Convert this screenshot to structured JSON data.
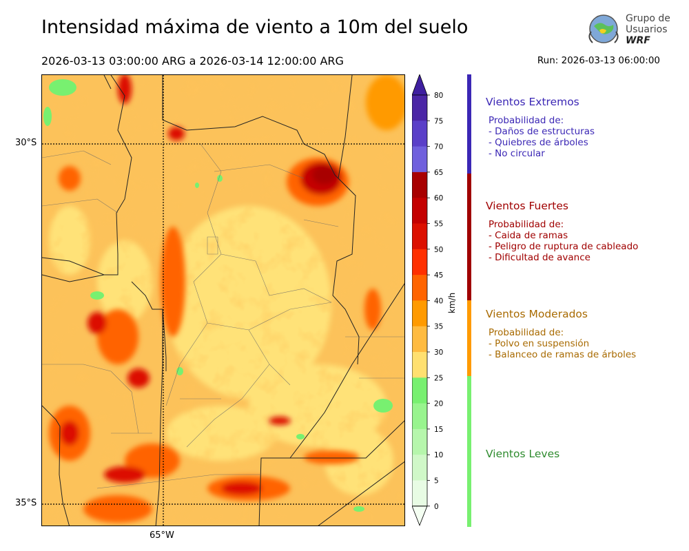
{
  "header": {
    "title": "Intensidad máxima de viento a 10m del suelo",
    "period": "2026-03-13 03:00:00 ARG  a  2026-03-14 12:00:00 ARG",
    "run": "Run: 2026-03-13 06:00:00"
  },
  "logo": {
    "line1": "Grupo de",
    "line2": "Usuarios",
    "line3": "WRF"
  },
  "map": {
    "lat_labels": [
      "30°S",
      "35°S"
    ],
    "lon_labels": [
      "65°W"
    ]
  },
  "colorbar": {
    "unit": "km/h",
    "ticks": [
      "80",
      "75",
      "70",
      "65",
      "60",
      "55",
      "50",
      "45",
      "40",
      "35",
      "30",
      "25",
      "20",
      "15",
      "10",
      "5",
      "0"
    ],
    "colors": [
      "#4b26a6",
      "#5a3fc8",
      "#7060dd",
      "#a80000",
      "#c40000",
      "#dc1000",
      "#ff3000",
      "#ff6400",
      "#ff9a00",
      "#ffbb40",
      "#ffe070",
      "#78f070",
      "#98f48e",
      "#b6f6ac",
      "#d0f8c8",
      "#e8fce4"
    ],
    "extend_max_color": "#3f1fa0",
    "extend_min_color": "#f4fff2"
  },
  "legend": [
    {
      "title": "Vientos Extremos",
      "color": "#3b27b5",
      "desc": [
        "Probabilidad de:",
        "- Daños de estructuras",
        "- Quiebres de árboles",
        "- No circular"
      ]
    },
    {
      "title": "Vientos Fuertes",
      "color": "#a00000",
      "desc": [
        "Probabilidad de:",
        "- Caida de ramas",
        "- Peligro de ruptura de cableado",
        "- Dificultad de avance"
      ]
    },
    {
      "title": "Vientos Moderados",
      "color": "#a86a00",
      "desc": [
        "Probabilidad de:",
        "- Polvo en suspensión",
        "- Balanceo de ramas de árboles"
      ]
    },
    {
      "title": "Vientos Leves",
      "color": "#2e8b2e",
      "desc": []
    }
  ]
}
